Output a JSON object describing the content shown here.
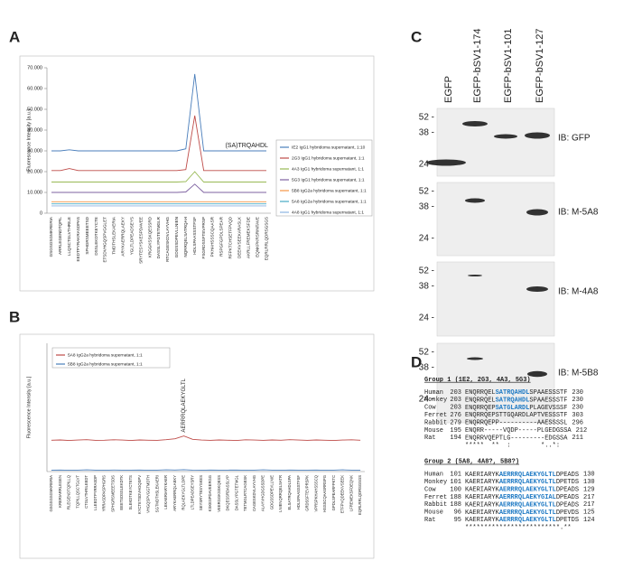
{
  "panel_labels": [
    "A",
    "B",
    "C",
    "D"
  ],
  "chart_data": [
    {
      "type": "line",
      "y_label": "Fluorescence Intensity [a.u.]",
      "annotation": "(SA)TRQAHDL",
      "annotation_index": 19,
      "categories": [
        "GSGSGSGMKRERIA",
        "ARRLEGENDTQPIL",
        "LLQSCTGLVTHRILE",
        "EEDTPYRAKRASDPAS",
        "SPHGRSMEEETSD",
        "DSSLEKDTKEYCTE",
        "ETSDVHGQSPVGGLET",
        "TMDTHSLEKAERIA",
        "ARYKAERRQLAEKY",
        "YGLTLDPEADSEYS",
        "SRYTESYSKESPDAVEE",
        "KRGGKSSKQESSRD",
        "DASSLYPGTETMGLR",
        "RTCAGESKDVLAYVHG",
        "GDGSSDPEVLLNIEN",
        "NQRRQELSATRQAH",
        "HDLSPAASSSTFSF",
        "FSGRDSSFTEVPRSP",
        "PKHAHSSSCQAASR",
        "RSPGFGPDLSPEAR",
        "RFPKTCHSETFPVQD",
        "DEEKVSEEKARASLK",
        "AKRLLFREMEKSFDE",
        "EQNKPKRSRINTAVE",
        "EQRLRRLQDRSGSGS"
      ],
      "ylim": [
        0,
        70000
      ],
      "yticks": [
        0,
        {
          "value": 10000,
          "label": "10.000"
        },
        {
          "value": 20000,
          "label": "20.000"
        },
        {
          "value": 30000,
          "label": "30.000"
        },
        {
          "value": 40000,
          "label": "40.000"
        },
        {
          "value": 50000,
          "label": "50.000"
        },
        {
          "value": 60000,
          "label": "60.000"
        },
        {
          "value": 70000,
          "label": "70.000"
        }
      ],
      "series": [
        {
          "name": "IE2 IgG1 hybridoma supernatant, 1:10",
          "color": "#4a7ebb",
          "values": [
            30000,
            30000,
            30500,
            30000,
            30000,
            30000,
            30000,
            30000,
            30000,
            30000,
            30000,
            30000,
            30000,
            30000,
            30000,
            31000,
            67000,
            30000,
            30000,
            30000,
            30000,
            30000,
            30000,
            30000,
            30000
          ]
        },
        {
          "name": "2G3 IgG1 hybridoma supernatant, 1:1",
          "color": "#be4b48",
          "values": [
            20500,
            20500,
            21500,
            20500,
            20500,
            20500,
            20500,
            20500,
            20500,
            20500,
            20500,
            20500,
            20500,
            20500,
            20500,
            21000,
            47000,
            20500,
            20500,
            20500,
            20500,
            20500,
            20500,
            20500,
            20500
          ]
        },
        {
          "name": "4A3 IgG1 hybridoma supernatant, 1:1",
          "color": "#98b954",
          "values": [
            15000,
            15000,
            15000,
            15000,
            15000,
            15000,
            15000,
            15000,
            15000,
            15000,
            15000,
            15000,
            15000,
            15000,
            15000,
            15200,
            20000,
            15000,
            15000,
            15000,
            15000,
            15000,
            15000,
            15000,
            15000
          ]
        },
        {
          "name": "5G3 IgG1 hybridoma supernatant, 1:1",
          "color": "#7d60a0",
          "values": [
            10000,
            10000,
            10000,
            10000,
            10000,
            10000,
            10000,
            10000,
            10000,
            10000,
            10000,
            10000,
            10000,
            10000,
            10000,
            10200,
            14000,
            10000,
            10000,
            10000,
            10000,
            10000,
            10000,
            10000,
            10000
          ]
        },
        {
          "name": "5B8 IgG2a hybridoma supernatant, 1:1",
          "color": "#f79646",
          "values": [
            5500,
            5500,
            5500,
            5500,
            5500,
            5500,
            5500,
            5500,
            5500,
            5500,
            5500,
            5500,
            5500,
            5500,
            5500,
            5500,
            5500,
            5500,
            5500,
            5500,
            5500,
            5500,
            5500,
            5500,
            5500
          ]
        },
        {
          "name": "5A8 IgG2a hybridoma supernatant, 1:1",
          "color": "#46aac5",
          "values": [
            4500,
            4500,
            4500,
            4500,
            4500,
            4500,
            4500,
            4500,
            4500,
            4500,
            4500,
            4500,
            4500,
            4500,
            4500,
            4500,
            4500,
            4500,
            4500,
            4500,
            4500,
            4500,
            4500,
            4500,
            4500
          ]
        },
        {
          "name": "4A8 IgG1 hybridoma supernatant, 1:1",
          "color": "#8db3e2",
          "values": [
            3500,
            3500,
            3500,
            3500,
            3500,
            3500,
            3500,
            3500,
            3500,
            3500,
            3500,
            3500,
            3500,
            3500,
            3500,
            3500,
            3500,
            3500,
            3500,
            3500,
            3500,
            3500,
            3500,
            3500,
            3500
          ]
        }
      ]
    },
    {
      "type": "line",
      "y_label": "Fluorescence Intensity [a.u.]",
      "annotation": "AERRRQLAEKYGLTL",
      "annotation_index": 15,
      "categories": [
        "GSGSGSGMKRERIA",
        "KRERIARRLEGEN",
        "RLEGENDTQPILLQ",
        "TQPILLQSCTGLVT",
        "CTGLVTHRILEEDT",
        "LLEEDTPYRRASDP",
        "YRRASDPASPHGRS",
        "SPHGRSMEEETSDS",
        "EEETSDSSLEKDTK",
        "SLEKDTKEYCTETS",
        "KYCTETSDVHGQSPV",
        "VHGQSPVGGTMDTH",
        "SGTMDTHSLEKAERI",
        "LEKAERIARYKAER",
        "ARYKAERRQLAEKY",
        "RQLAEKYGLTLDPE",
        "LTLDPEADSEYSRY",
        "SEYSRYTESYSKES",
        "KSKESPDAVEERGG",
        "VEERGGKSSKQESS",
        "DKQESSRDASSLYP",
        "DASSLYPGTETMGL",
        "TETMGLRTCAGESK",
        "CAGESKDVLAYVHG",
        "ALAYVHGDGSSDPE",
        "GDGSSDPEVLLNIE",
        "LNIENQRRQELSATR",
        "ELSATRQAHDLSPA",
        "HDLSPAASSSTFSF",
        "GRDSSFTEVPRSPK",
        "VPRSPKHAHSSSCQ",
        "HSSSCQAASRRSPG",
        "GPDLSPEARFPKTC",
        "ETFPVQDEEKVSEEK",
        "LFREMEKSFDEQNK",
        "EQRLRRLQDRSGSGS"
      ],
      "ylim": [
        0,
        900
      ],
      "series": [
        {
          "name": "5A8 IgG2a hybridoma supernatant, 1:1",
          "color": "#be4b48",
          "values": [
            220,
            222,
            218,
            221,
            224,
            219,
            220,
            223,
            221,
            218,
            222,
            220,
            219,
            224,
            230,
            250,
            226,
            221,
            219,
            222,
            220,
            218,
            223,
            221,
            219,
            222,
            220,
            224,
            221,
            219,
            222,
            220,
            218,
            221,
            223,
            220
          ]
        },
        {
          "name": "5B8 IgG2a hybridoma supernatant, 1:1",
          "color": "#4a7ebb",
          "values": [
            10,
            11,
            9,
            10,
            12,
            10,
            9,
            11,
            10,
            10,
            11,
            9,
            10,
            12,
            11,
            13,
            10,
            9,
            11,
            10,
            10,
            11,
            9,
            10,
            12,
            10,
            9,
            11,
            10,
            10,
            11,
            9,
            10,
            12,
            10,
            10
          ]
        }
      ]
    }
  ],
  "blot": {
    "lanes": [
      "EGFP",
      "EGFP-bSV1-174",
      "EGFP-bSV1-101",
      "EGFP-bSV1-127"
    ],
    "panels": [
      {
        "label": "IB: GFP",
        "markers": [
          "52 -",
          "38 -",
          "24 -"
        ]
      },
      {
        "label": "IB: M-5A8",
        "markers": [
          "52 -",
          "38 -",
          "24 -"
        ]
      },
      {
        "label": "IB: M-4A8",
        "markers": [
          "52 -",
          "38 -",
          "24 -"
        ]
      },
      {
        "label": "IB: M-5B8",
        "markers": [
          "52 -",
          "38 -",
          "24 -"
        ]
      }
    ]
  },
  "alignment": {
    "groups": [
      {
        "title": "Group 1 (1E2, 2G3, 4A3, 5G3)",
        "rows": [
          {
            "species": "Human",
            "start": "203",
            "pre": "ENQRRQEL",
            "mid": "SATRQAHDL",
            "post": "SPAAESSSTF",
            "end": "230"
          },
          {
            "species": "Monkey",
            "start": "203",
            "pre": "ENQRRQEL",
            "mid": "SATRQAHDL",
            "post": "SPAAESSSTF",
            "end": "230"
          },
          {
            "species": "Cow",
            "start": "203",
            "pre": "ENQRRQEP",
            "mid": "SATGLARDL",
            "post": "PLAGEVSSSF",
            "end": "230"
          },
          {
            "species": "Ferret",
            "start": "276",
            "pre": "ENQRRQEPSTTGQARDLAPTVESSSTF",
            "end": "303"
          },
          {
            "species": "Rabbit",
            "start": "279",
            "pre": "ENQRRQEPP----------AAESSSSL",
            "end": "296"
          },
          {
            "species": "Mouse",
            "start": "195",
            "pre": "ENQRR-----VQDP-----PLGEDGSSA",
            "end": "212"
          },
          {
            "species": "Rat",
            "start": "194",
            "pre": "ENQRRVQEPTLG---------EDGSSA",
            "end": "211"
          }
        ],
        "consensus": "*****  **  :        *..*:"
      },
      {
        "title": "Group 2 (5A8, 4A8?, 5B8?)",
        "rows": [
          {
            "species": "Human",
            "start": "101",
            "pre": "KAERIARYK",
            "mid": "AERRRQLAEKYGLTL",
            "post": "DPEADS",
            "end": "130"
          },
          {
            "species": "Monkey",
            "start": "101",
            "pre": "KAERIARYK",
            "mid": "AERRRQLAEKYGLTL",
            "post": "DPETDS",
            "end": "130"
          },
          {
            "species": "Cow",
            "start": "100",
            "pre": "KAERIARYK",
            "mid": "AERRRQLAEKYGLTL",
            "post": "DPEADS",
            "end": "129"
          },
          {
            "species": "Ferret",
            "start": "188",
            "pre": "KAERIARYK",
            "mid": "AERRRQLAEKYGIAL",
            "post": "DPEADS",
            "end": "217"
          },
          {
            "species": "Rabbit",
            "start": "188",
            "pre": "KAERIARYK",
            "mid": "AERRRQLAEKYGLTL",
            "post": "DPEADS",
            "end": "217"
          },
          {
            "species": "Mouse",
            "start": "96",
            "pre": "KAERIARYK",
            "mid": "AERRRQLAEKYGLTL",
            "post": "DPEVDS",
            "end": "125"
          },
          {
            "species": "Rat",
            "start": "95",
            "pre": "KAERIARYK",
            "mid": "AERRRQLAEKYGLTL",
            "post": "DPETDS",
            "end": "124"
          }
        ],
        "consensus": "*************************.**"
      }
    ]
  }
}
